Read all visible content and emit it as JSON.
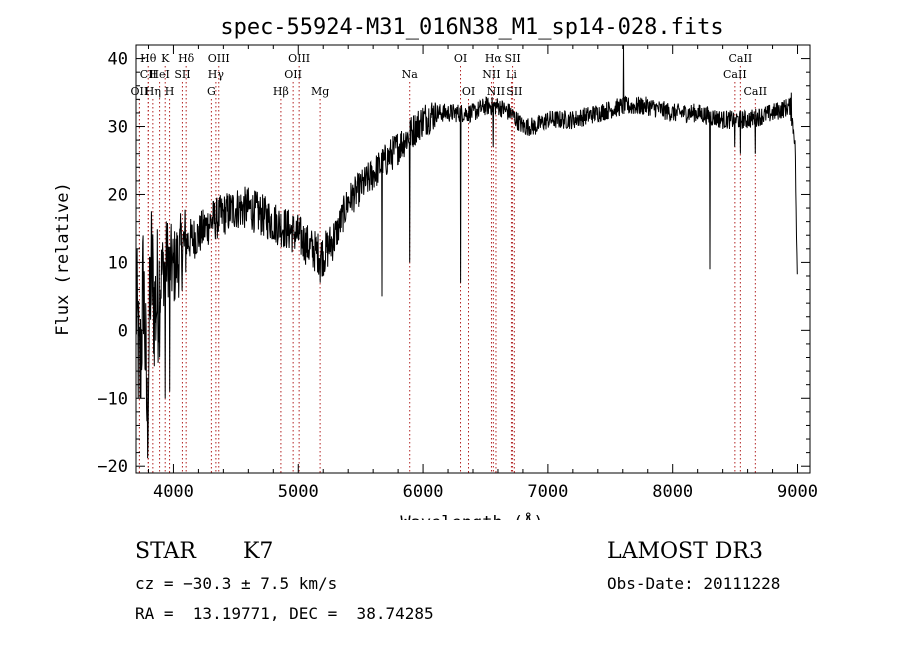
{
  "chart_data": {
    "type": "line",
    "title": "spec-55924-M31_016N38_M1_sp14-028.fits",
    "xlabel": "Wavelength (Å)",
    "ylabel": "Flux (relative)",
    "xlim": [
      3700,
      9100
    ],
    "ylim": [
      -21,
      42
    ],
    "xticks": [
      4000,
      5000,
      6000,
      7000,
      8000,
      9000
    ],
    "yticks": [
      -20,
      -10,
      0,
      10,
      20,
      30,
      40
    ],
    "line_color": "#000000",
    "marker_color": "#b22222",
    "spectrum_anchors": [
      [
        3700,
        5
      ],
      [
        3730,
        -8
      ],
      [
        3760,
        8
      ],
      [
        3790,
        -14
      ],
      [
        3820,
        10
      ],
      [
        3850,
        3
      ],
      [
        3900,
        8
      ],
      [
        3950,
        11
      ],
      [
        4000,
        9
      ],
      [
        4100,
        13
      ],
      [
        4200,
        14
      ],
      [
        4300,
        16
      ],
      [
        4400,
        17
      ],
      [
        4500,
        18
      ],
      [
        4600,
        18
      ],
      [
        4700,
        17
      ],
      [
        4800,
        16
      ],
      [
        4900,
        15
      ],
      [
        5000,
        14
      ],
      [
        5100,
        12
      ],
      [
        5200,
        11
      ],
      [
        5300,
        14
      ],
      [
        5400,
        19
      ],
      [
        5500,
        21
      ],
      [
        5600,
        23
      ],
      [
        5700,
        25
      ],
      [
        5800,
        27
      ],
      [
        5900,
        29
      ],
      [
        6000,
        31
      ],
      [
        6100,
        32
      ],
      [
        6200,
        32
      ],
      [
        6300,
        32
      ],
      [
        6400,
        32
      ],
      [
        6500,
        33
      ],
      [
        6600,
        33
      ],
      [
        6700,
        32
      ],
      [
        6800,
        30
      ],
      [
        6900,
        30
      ],
      [
        7000,
        31
      ],
      [
        7200,
        31
      ],
      [
        7400,
        32
      ],
      [
        7600,
        33
      ],
      [
        7800,
        33
      ],
      [
        8000,
        32
      ],
      [
        8200,
        32
      ],
      [
        8400,
        31
      ],
      [
        8600,
        31
      ],
      [
        8800,
        32
      ],
      [
        8940,
        33
      ],
      [
        8980,
        28
      ],
      [
        9000,
        5
      ]
    ],
    "absorption_dips": [
      [
        3934,
        -10
      ],
      [
        3969,
        -9
      ],
      [
        5175,
        7
      ],
      [
        5670,
        5
      ],
      [
        5893,
        10
      ],
      [
        6300,
        7
      ],
      [
        6563,
        27
      ],
      [
        8300,
        9
      ],
      [
        8498,
        27
      ],
      [
        8542,
        26
      ],
      [
        8662,
        26
      ]
    ],
    "emission_spikes": [
      [
        7605,
        45
      ],
      [
        8950,
        35
      ]
    ],
    "line_markers": [
      {
        "label": "Hθ",
        "wavelength": 3798,
        "row": 1
      },
      {
        "label": "CII",
        "wavelength": 3799,
        "row": 2
      },
      {
        "label": "OII",
        "wavelength": 3727,
        "row": 3
      },
      {
        "label": "K",
        "wavelength": 3934,
        "row": 1
      },
      {
        "label": "HeI",
        "wavelength": 3889,
        "row": 2
      },
      {
        "label": "Hη",
        "wavelength": 3835,
        "row": 3
      },
      {
        "label": "Hδ",
        "wavelength": 4102,
        "row": 1
      },
      {
        "label": "SII",
        "wavelength": 4072,
        "row": 2
      },
      {
        "label": "H",
        "wavelength": 3969,
        "row": 3
      },
      {
        "label": "OIII",
        "wavelength": 4363,
        "row": 1
      },
      {
        "label": "Hγ",
        "wavelength": 4340,
        "row": 2
      },
      {
        "label": "G",
        "wavelength": 4304,
        "row": 3
      },
      {
        "label": "OIII",
        "wavelength": 5007,
        "row": 1
      },
      {
        "label": "OII",
        "wavelength": 4959,
        "row": 2
      },
      {
        "label": "Hβ",
        "wavelength": 4861,
        "row": 3
      },
      {
        "label": "Mg",
        "wavelength": 5175,
        "row": 3
      },
      {
        "label": "Na",
        "wavelength": 5893,
        "row": 2
      },
      {
        "label": "OI",
        "wavelength": 6300,
        "row": 1
      },
      {
        "label": "OI",
        "wavelength": 6364,
        "row": 3
      },
      {
        "label": "Hα",
        "wavelength": 6563,
        "row": 1
      },
      {
        "label": "NII",
        "wavelength": 6548,
        "row": 2
      },
      {
        "label": "NII",
        "wavelength": 6584,
        "row": 3
      },
      {
        "label": "SII",
        "wavelength": 6717,
        "row": 1
      },
      {
        "label": "Li",
        "wavelength": 6708,
        "row": 2
      },
      {
        "label": "SII",
        "wavelength": 6731,
        "row": 3
      },
      {
        "label": "CaII",
        "wavelength": 8542,
        "row": 1
      },
      {
        "label": "CaII",
        "wavelength": 8498,
        "row": 2
      },
      {
        "label": "CaII",
        "wavelength": 8662,
        "row": 3
      }
    ]
  },
  "info": {
    "object_class": "STAR",
    "subclass": "K7",
    "survey": "LAMOST DR3",
    "velocity": "cz = −30.3 ± 7.5 km/s",
    "obs_date": "Obs-Date: 20111228",
    "coords": "RA =  13.19771, DEC =  38.74285"
  }
}
